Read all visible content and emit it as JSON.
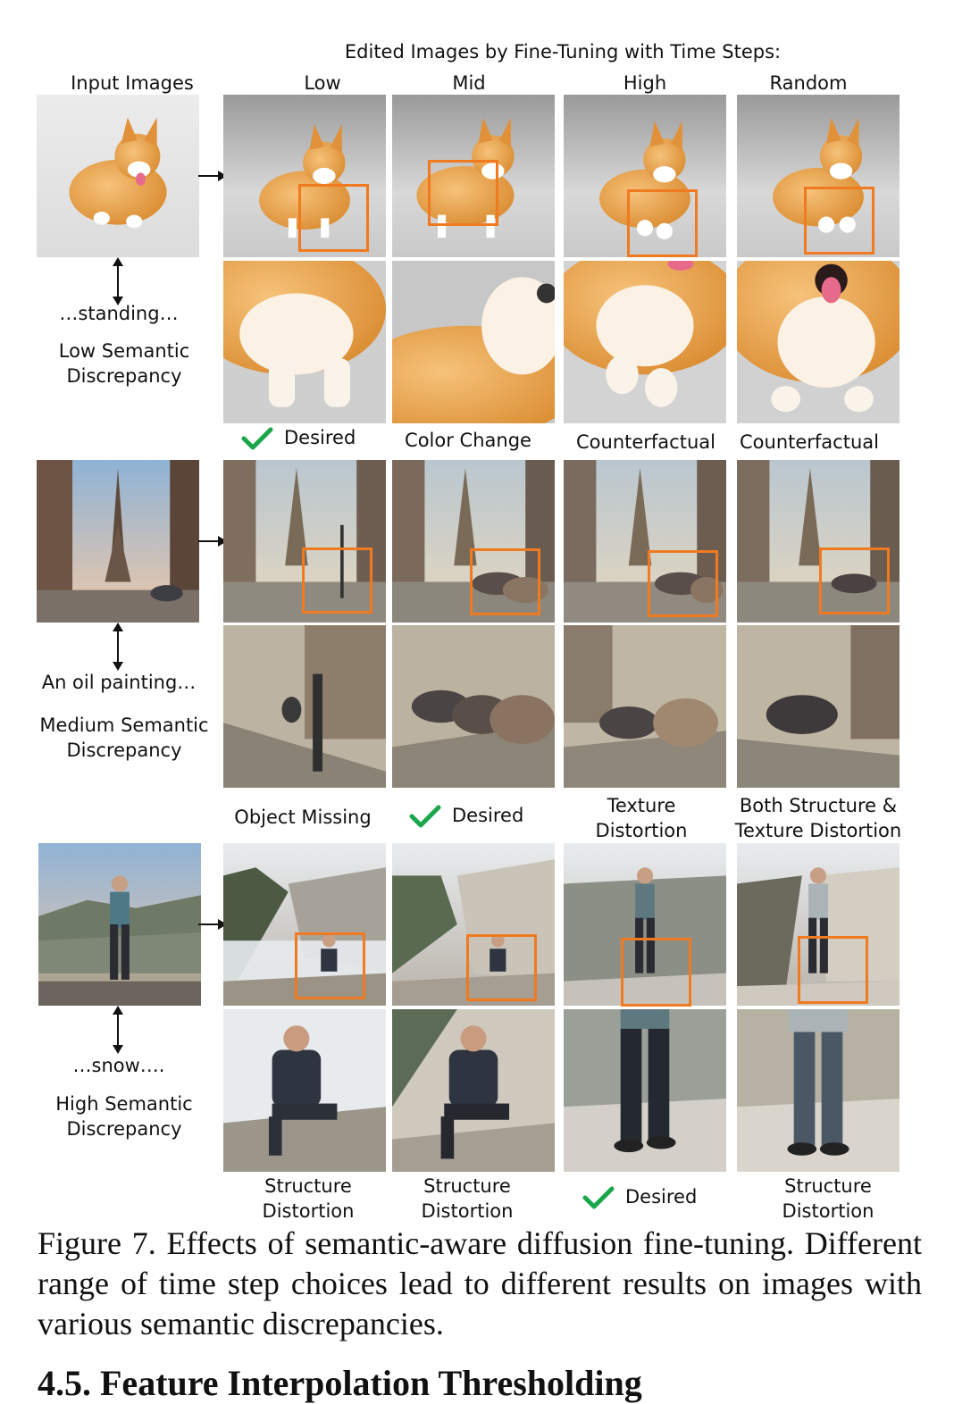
{
  "figure": {
    "header": "Edited Images by Fine-Tuning with Time Steps:",
    "input_label": "Input Images",
    "columns": [
      "Low",
      "Mid",
      "High",
      "Random"
    ],
    "rows": [
      {
        "prompt": "…standing…",
        "discrepancy": "Low Semantic\nDiscrepancy",
        "labels": [
          "Desired",
          "Color Change",
          "Counterfactual",
          "Counterfactual"
        ],
        "desired_index": 0
      },
      {
        "prompt": "An oil painting…",
        "discrepancy": "Medium Semantic\nDiscrepancy",
        "labels": [
          "Object Missing",
          "Desired",
          "Texture\nDistortion",
          "Both Structure &\nTexture Distortion"
        ],
        "desired_index": 1
      },
      {
        "prompt": "…snow….",
        "discrepancy": "High Semantic\nDiscrepancy",
        "labels": [
          "Structure\nDistortion",
          "Structure\nDistortion",
          "Desired",
          "Structure\nDistortion"
        ],
        "desired_index": 2
      }
    ],
    "colors": {
      "highlight_box": "#f07a20",
      "check": "#1aa64b"
    }
  },
  "caption": "Figure 7. Effects of semantic-aware diffusion fine-tuning. Different range of time step choices lead to different results on images with various semantic discrepancies.",
  "section_heading": "4.5. Feature Interpolation Thresholding"
}
